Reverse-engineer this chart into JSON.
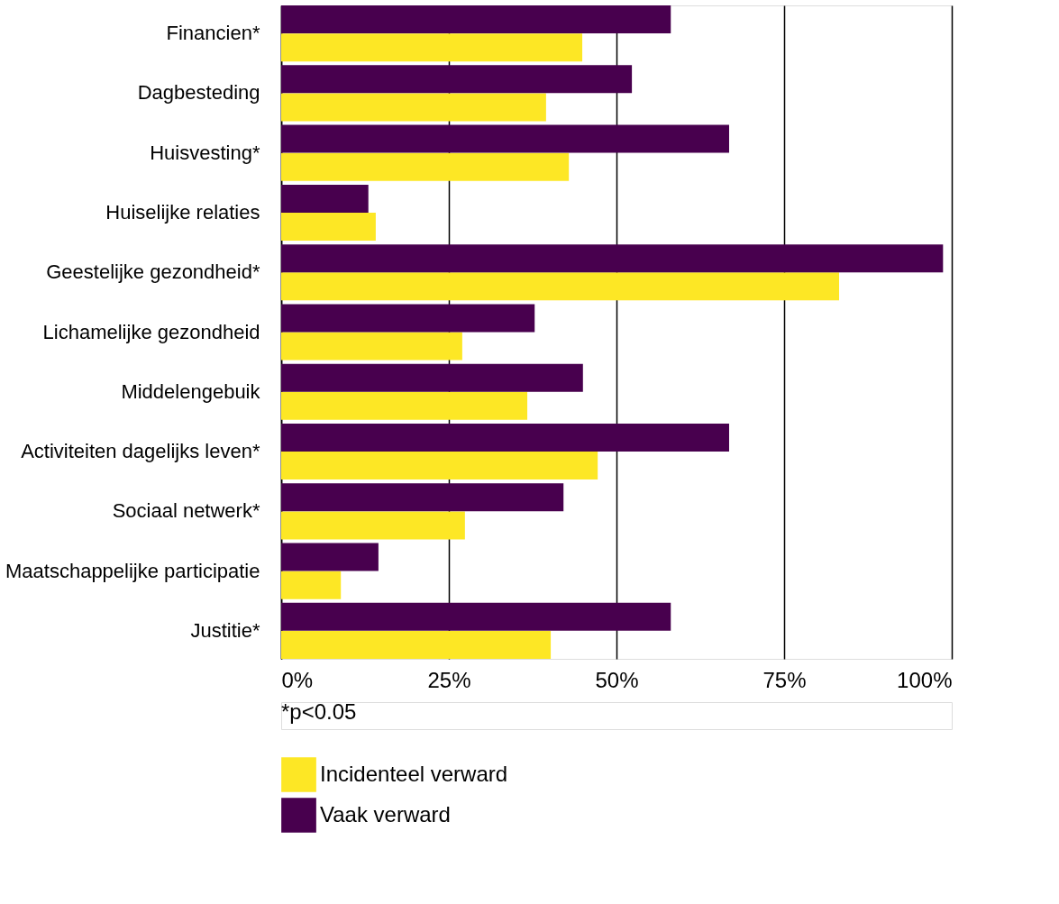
{
  "chart_data": {
    "type": "bar",
    "orientation": "horizontal",
    "categories": [
      "Financien*",
      "Dagbesteding",
      "Huisvesting*",
      "Huiselijke relaties",
      "Geestelijke gezondheid*",
      "Lichamelijke gezondheid",
      "Middelengebuik",
      "Activiteiten dagelijks leven*",
      "Sociaal netwerk*",
      "Maatschappelijke participatie",
      "Justitie*"
    ],
    "series": [
      {
        "name": "Incidenteel verward",
        "color": "#fde725",
        "values": [
          44.9,
          39.5,
          42.9,
          14.1,
          83.2,
          27.0,
          36.7,
          47.2,
          27.4,
          8.9,
          40.2
        ]
      },
      {
        "name": "Vaak verward",
        "color": "#48004e",
        "values": [
          58.1,
          52.3,
          66.8,
          13.0,
          98.7,
          37.8,
          45.0,
          66.8,
          42.1,
          14.5,
          58.1
        ]
      }
    ],
    "xlim": [
      0,
      100
    ],
    "xticks": [
      {
        "value": 0,
        "label": "0%"
      },
      {
        "value": 25,
        "label": "25%"
      },
      {
        "value": 50,
        "label": "50%"
      },
      {
        "value": 75,
        "label": "75%"
      },
      {
        "value": 100,
        "label": "100%"
      }
    ],
    "grid": "x",
    "legend": "bottom",
    "annotations": [
      "*p<0.05"
    ]
  }
}
